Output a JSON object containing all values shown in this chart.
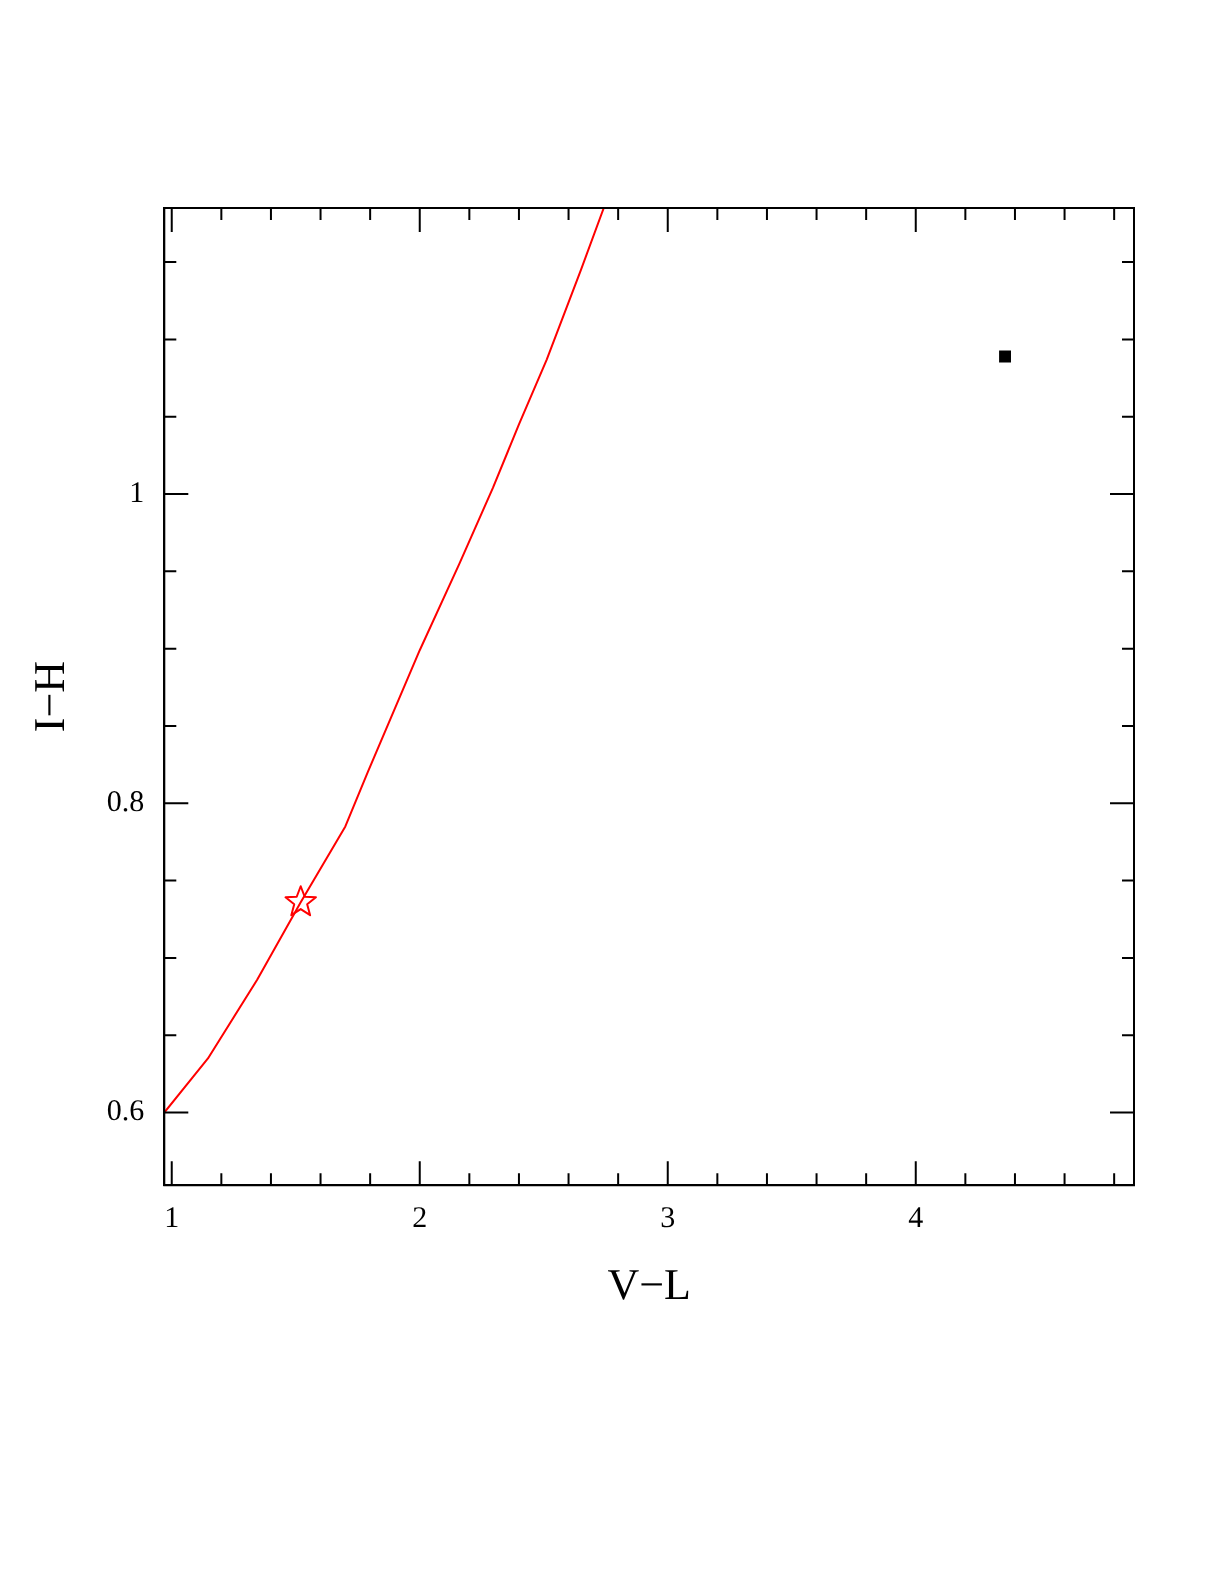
{
  "chart_data": {
    "type": "scatter",
    "xlabel": "V−L",
    "ylabel": "I−H",
    "xlim": [
      0.97,
      4.88
    ],
    "ylim": [
      0.553,
      1.185
    ],
    "xticks": [
      1,
      {
        "value": 1.2,
        "label": null
      },
      {
        "value": 1.4,
        "label": null
      },
      {
        "value": 1.6,
        "label": null
      },
      {
        "value": 1.8,
        "label": null
      },
      2,
      {
        "value": 2.2,
        "label": null
      },
      {
        "value": 2.4,
        "label": null
      },
      {
        "value": 2.6,
        "label": null
      },
      {
        "value": 2.8,
        "label": null
      },
      3,
      {
        "value": 3.2,
        "label": null
      },
      {
        "value": 3.4,
        "label": null
      },
      {
        "value": 3.6,
        "label": null
      },
      {
        "value": 3.8,
        "label": null
      },
      4,
      {
        "value": 4.2,
        "label": null
      },
      {
        "value": 4.4,
        "label": null
      },
      {
        "value": 4.6,
        "label": null
      },
      {
        "value": 4.8,
        "label": null
      }
    ],
    "yticks": [
      0.6,
      {
        "value": 0.65,
        "label": null
      },
      {
        "value": 0.7,
        "label": null
      },
      {
        "value": 0.75,
        "label": null
      },
      0.8,
      {
        "value": 0.85,
        "label": null
      },
      {
        "value": 0.9,
        "label": null
      },
      {
        "value": 0.95,
        "label": null
      },
      1,
      {
        "value": 1.05,
        "label": null
      },
      {
        "value": 1.1,
        "label": null
      },
      {
        "value": 1.15,
        "label": null
      }
    ],
    "grid": false,
    "legend": false,
    "series": [
      {
        "type": "line",
        "marker": "none",
        "line_style": "solid",
        "color": "#ff0000",
        "x": [
          0.97,
          1.146,
          1.345,
          1.52,
          1.7,
          1.79,
          2.0,
          2.16,
          2.295,
          2.4,
          2.512,
          2.65,
          2.742
        ],
        "values": [
          0.6,
          0.635,
          0.686,
          0.736,
          0.785,
          0.82,
          0.899,
          0.955,
          1.004,
          1.045,
          1.087,
          1.145,
          1.185
        ]
      },
      {
        "marker": "star",
        "color": "#ff0000",
        "x": [
          1.52
        ],
        "values": [
          0.736
        ]
      },
      {
        "marker": "square",
        "color": "#000000",
        "x": [
          4.36
        ],
        "values": [
          1.089
        ]
      }
    ]
  }
}
